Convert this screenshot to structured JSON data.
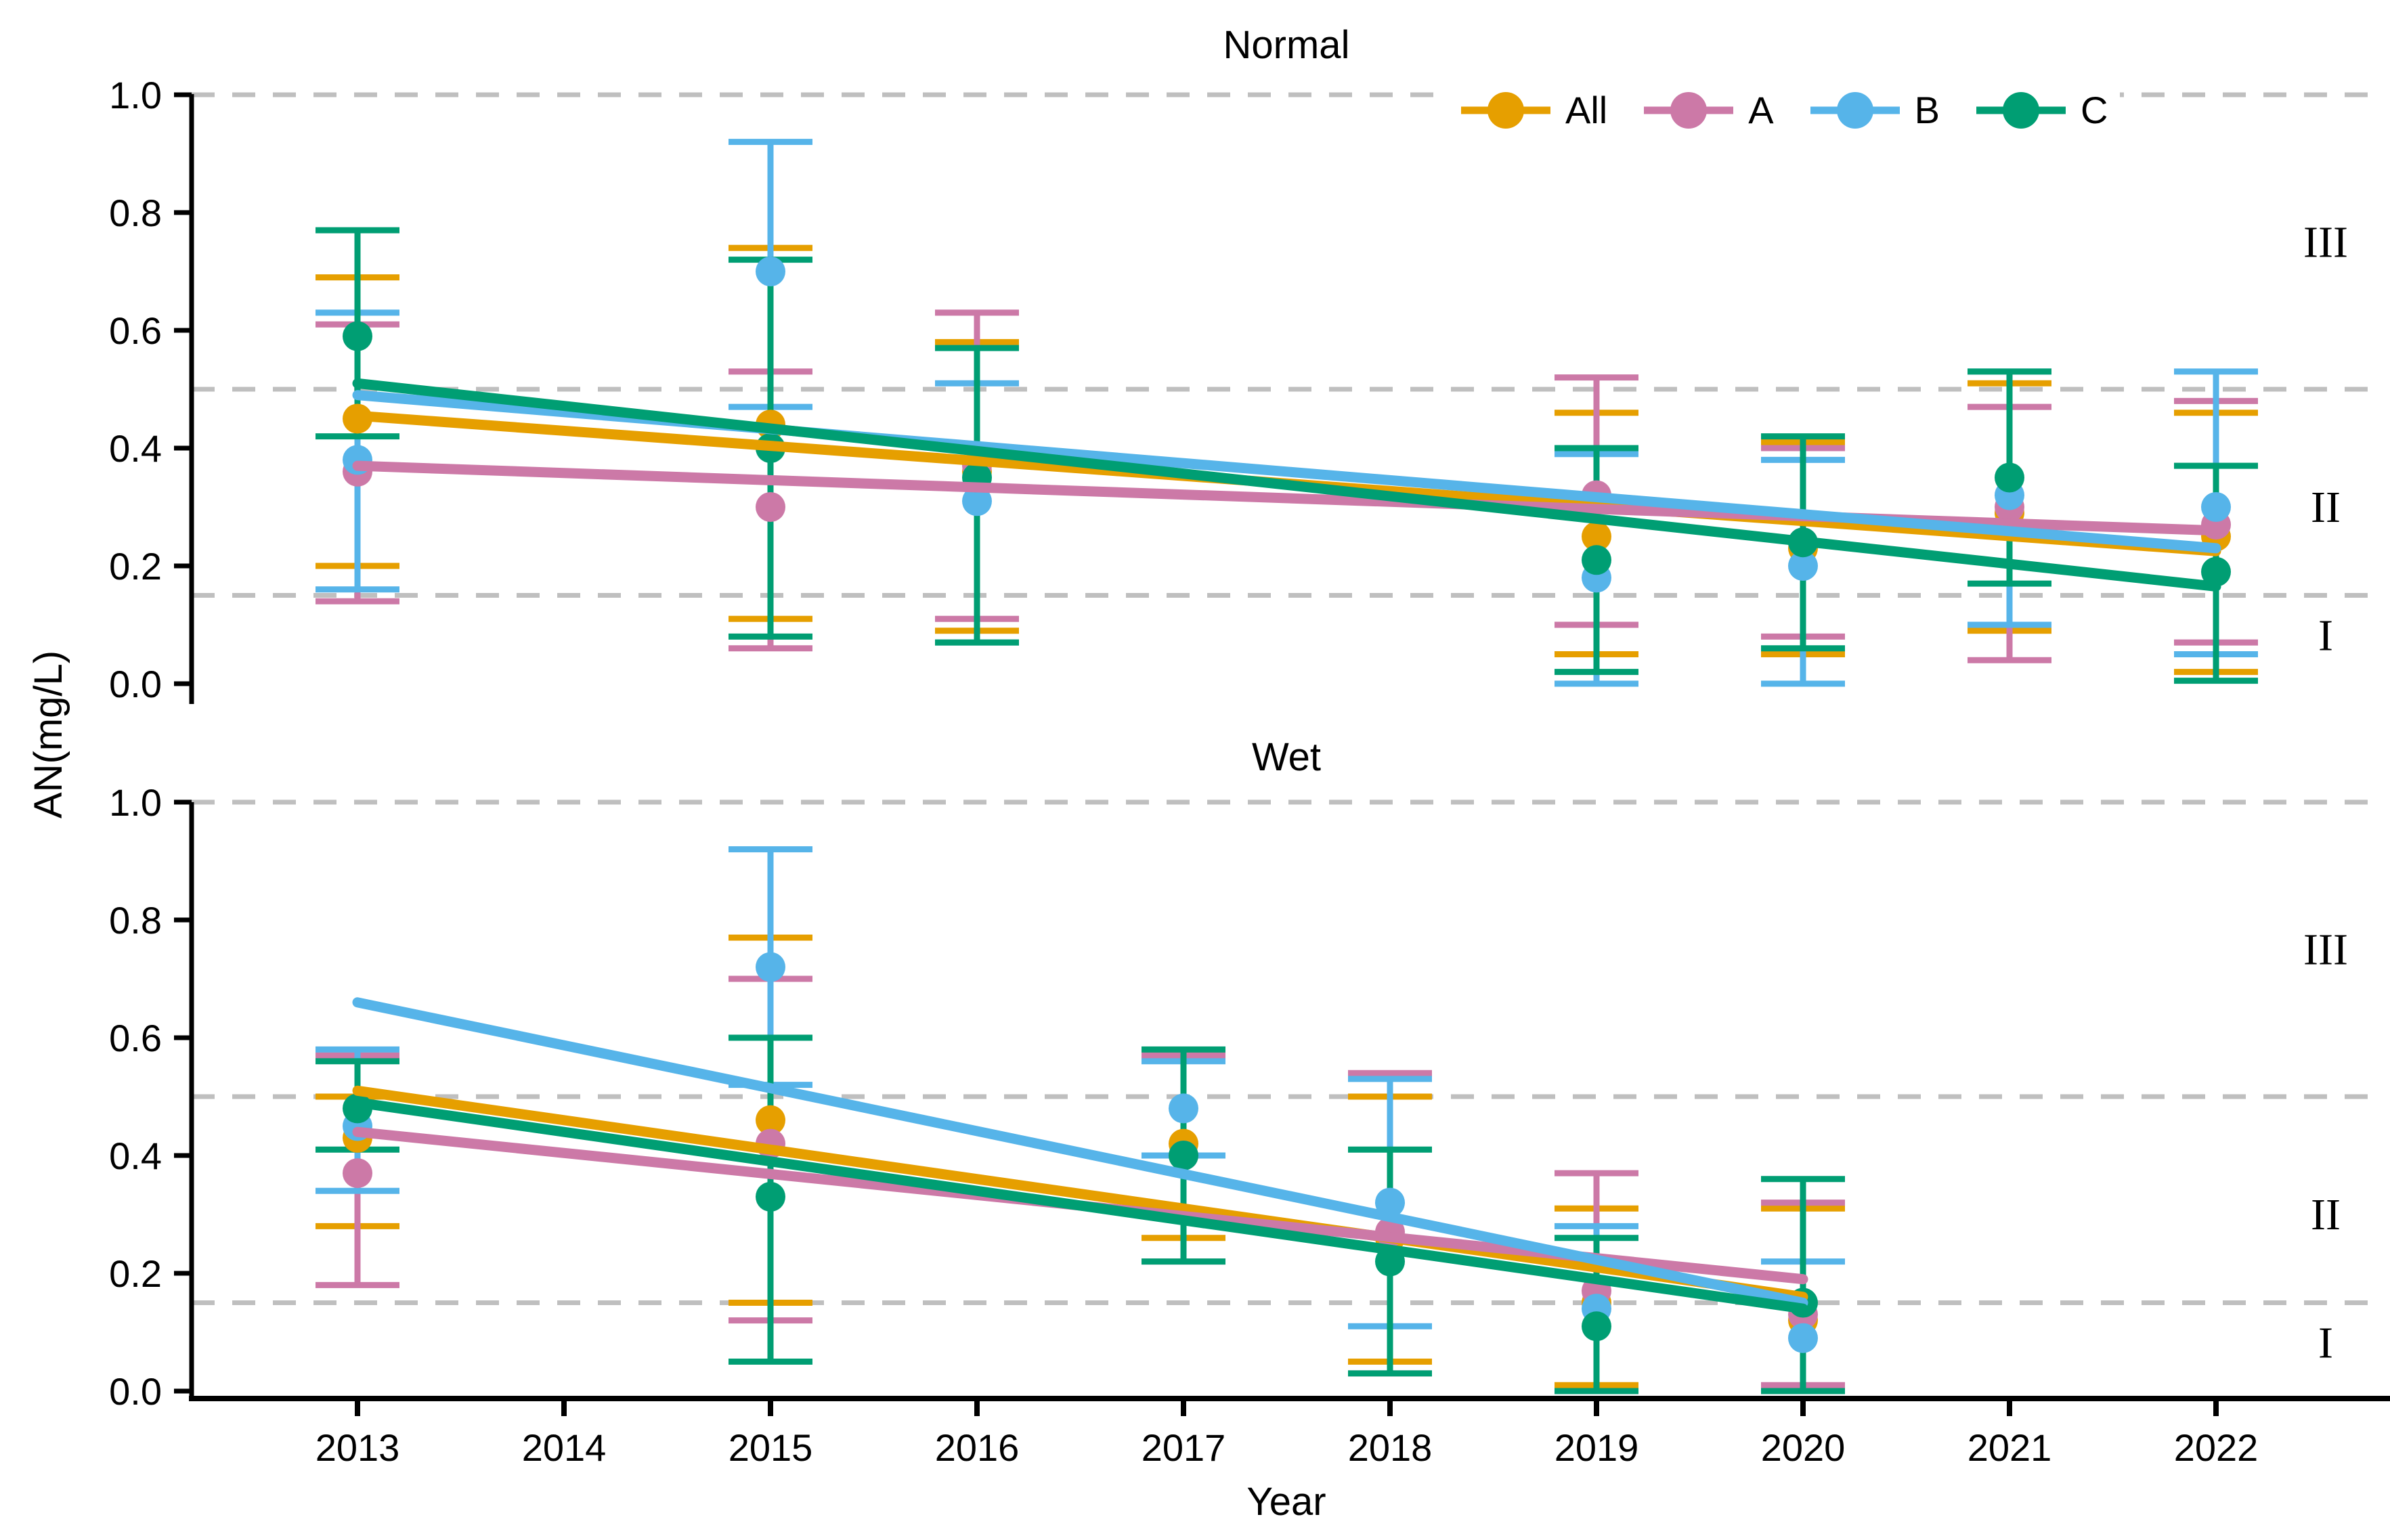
{
  "figure": {
    "background": "#ffffff",
    "ylabel": "AN(mg/L)",
    "xlabel": "Year"
  },
  "legend": {
    "items": [
      {
        "label": "All",
        "color": "#E69F00"
      },
      {
        "label": "A",
        "color": "#CC79A7"
      },
      {
        "label": "B",
        "color": "#56B4E9"
      },
      {
        "label": "C",
        "color": "#009E73"
      }
    ]
  },
  "colors": {
    "All": "#E69F00",
    "A": "#CC79A7",
    "B": "#56B4E9",
    "C": "#009E73",
    "gridline": "#BFBFBF",
    "axis": "#000000",
    "text": "#000000"
  },
  "x_axis": {
    "label": "Year",
    "ticks": [
      2013,
      2014,
      2015,
      2016,
      2017,
      2018,
      2019,
      2020,
      2021,
      2022
    ]
  },
  "chart_data": [
    {
      "type": "scatter",
      "title": "Normal",
      "ylabel": "AN(mg/L)",
      "ylim": [
        0.0,
        1.0
      ],
      "y_ticks": [
        0.0,
        0.2,
        0.4,
        0.6,
        0.8,
        1.0
      ],
      "grid_dashed_at": [
        1.0,
        0.5,
        0.15
      ],
      "region_labels": [
        {
          "label": "III",
          "y": 0.75
        },
        {
          "label": "II",
          "y": 0.3
        },
        {
          "label": "I",
          "y": 0.082
        }
      ],
      "series": [
        {
          "name": "All",
          "color": "#E69F00",
          "points": [
            {
              "x": 2013,
              "y": 0.45,
              "lo": 0.2,
              "hi": 0.69
            },
            {
              "x": 2015,
              "y": 0.44,
              "lo": 0.11,
              "hi": 0.74
            },
            {
              "x": 2016,
              "y": 0.36,
              "lo": 0.09,
              "hi": 0.58
            },
            {
              "x": 2019,
              "y": 0.25,
              "lo": 0.05,
              "hi": 0.46
            },
            {
              "x": 2020,
              "y": 0.23,
              "lo": 0.05,
              "hi": 0.41
            },
            {
              "x": 2021,
              "y": 0.29,
              "lo": 0.09,
              "hi": 0.51
            },
            {
              "x": 2022,
              "y": 0.25,
              "lo": 0.02,
              "hi": 0.46
            }
          ],
          "trend": {
            "x1": 2013,
            "y1": 0.455,
            "x2": 2022,
            "y2": 0.225
          }
        },
        {
          "name": "A",
          "color": "#CC79A7",
          "points": [
            {
              "x": 2013,
              "y": 0.36,
              "lo": 0.14,
              "hi": 0.61
            },
            {
              "x": 2015,
              "y": 0.3,
              "lo": 0.06,
              "hi": 0.53
            },
            {
              "x": 2016,
              "y": 0.37,
              "lo": 0.11,
              "hi": 0.63
            },
            {
              "x": 2019,
              "y": 0.32,
              "lo": 0.1,
              "hi": 0.52
            },
            {
              "x": 2020,
              "y": 0.24,
              "lo": 0.08,
              "hi": 0.4
            },
            {
              "x": 2021,
              "y": 0.3,
              "lo": 0.04,
              "hi": 0.47
            },
            {
              "x": 2022,
              "y": 0.27,
              "lo": 0.07,
              "hi": 0.48
            }
          ],
          "trend": {
            "x1": 2013,
            "y1": 0.37,
            "x2": 2022,
            "y2": 0.26
          }
        },
        {
          "name": "B",
          "color": "#56B4E9",
          "points": [
            {
              "x": 2013,
              "y": 0.38,
              "lo": 0.16,
              "hi": 0.63
            },
            {
              "x": 2015,
              "y": 0.7,
              "lo": 0.47,
              "hi": 0.92
            },
            {
              "x": 2016,
              "y": 0.31,
              "lo": 0.07,
              "hi": 0.51
            },
            {
              "x": 2019,
              "y": 0.18,
              "lo": 0.0,
              "hi": 0.39
            },
            {
              "x": 2020,
              "y": 0.2,
              "lo": 0.0,
              "hi": 0.38
            },
            {
              "x": 2021,
              "y": 0.32,
              "lo": 0.1,
              "hi": 0.53
            },
            {
              "x": 2022,
              "y": 0.3,
              "lo": 0.05,
              "hi": 0.53
            }
          ],
          "trend": {
            "x1": 2013,
            "y1": 0.49,
            "x2": 2022,
            "y2": 0.23
          }
        },
        {
          "name": "C",
          "color": "#009E73",
          "points": [
            {
              "x": 2013,
              "y": 0.59,
              "lo": 0.42,
              "hi": 0.77
            },
            {
              "x": 2015,
              "y": 0.4,
              "lo": 0.08,
              "hi": 0.72
            },
            {
              "x": 2016,
              "y": 0.35,
              "lo": 0.07,
              "hi": 0.57
            },
            {
              "x": 2019,
              "y": 0.21,
              "lo": 0.02,
              "hi": 0.4
            },
            {
              "x": 2020,
              "y": 0.24,
              "lo": 0.06,
              "hi": 0.42
            },
            {
              "x": 2021,
              "y": 0.35,
              "lo": 0.17,
              "hi": 0.53
            },
            {
              "x": 2022,
              "y": 0.19,
              "lo": 0.005,
              "hi": 0.37
            }
          ],
          "trend": {
            "x1": 2013,
            "y1": 0.51,
            "x2": 2022,
            "y2": 0.165
          }
        }
      ]
    },
    {
      "type": "scatter",
      "title": "Wet",
      "ylabel": "AN(mg/L)",
      "ylim": [
        0.0,
        1.0
      ],
      "y_ticks": [
        0.0,
        0.2,
        0.4,
        0.6,
        0.8,
        1.0
      ],
      "grid_dashed_at": [
        1.0,
        0.5,
        0.15
      ],
      "region_labels": [
        {
          "label": "III",
          "y": 0.75
        },
        {
          "label": "II",
          "y": 0.3
        },
        {
          "label": "I",
          "y": 0.082
        }
      ],
      "series": [
        {
          "name": "All",
          "color": "#E69F00",
          "points": [
            {
              "x": 2013,
              "y": 0.43,
              "lo": 0.28,
              "hi": 0.5
            },
            {
              "x": 2015,
              "y": 0.46,
              "lo": 0.15,
              "hi": 0.77
            },
            {
              "x": 2017,
              "y": 0.42,
              "lo": 0.26,
              "hi": 0.57
            },
            {
              "x": 2018,
              "y": 0.26,
              "lo": 0.05,
              "hi": 0.5
            },
            {
              "x": 2019,
              "y": 0.15,
              "lo": 0.01,
              "hi": 0.31
            },
            {
              "x": 2020,
              "y": 0.12,
              "lo": 0.0,
              "hi": 0.31
            }
          ],
          "trend": {
            "x1": 2013,
            "y1": 0.51,
            "x2": 2020,
            "y2": 0.16
          }
        },
        {
          "name": "A",
          "color": "#CC79A7",
          "points": [
            {
              "x": 2013,
              "y": 0.37,
              "lo": 0.18,
              "hi": 0.57
            },
            {
              "x": 2015,
              "y": 0.42,
              "lo": 0.12,
              "hi": 0.7
            },
            {
              "x": 2017,
              "y": 0.4,
              "lo": 0.22,
              "hi": 0.57
            },
            {
              "x": 2018,
              "y": 0.27,
              "lo": 0.03,
              "hi": 0.54
            },
            {
              "x": 2019,
              "y": 0.17,
              "lo": 0.0,
              "hi": 0.37
            },
            {
              "x": 2020,
              "y": 0.13,
              "lo": 0.01,
              "hi": 0.32
            }
          ],
          "trend": {
            "x1": 2013,
            "y1": 0.44,
            "x2": 2020,
            "y2": 0.19
          }
        },
        {
          "name": "B",
          "color": "#56B4E9",
          "points": [
            {
              "x": 2013,
              "y": 0.45,
              "lo": 0.34,
              "hi": 0.58
            },
            {
              "x": 2015,
              "y": 0.72,
              "lo": 0.52,
              "hi": 0.92
            },
            {
              "x": 2017,
              "y": 0.48,
              "lo": 0.4,
              "hi": 0.56
            },
            {
              "x": 2018,
              "y": 0.32,
              "lo": 0.11,
              "hi": 0.53
            },
            {
              "x": 2019,
              "y": 0.14,
              "lo": 0.0,
              "hi": 0.28
            },
            {
              "x": 2020,
              "y": 0.09,
              "lo": 0.0,
              "hi": 0.22
            }
          ],
          "trend": {
            "x1": 2013,
            "y1": 0.66,
            "x2": 2020,
            "y2": 0.15
          }
        },
        {
          "name": "C",
          "color": "#009E73",
          "points": [
            {
              "x": 2013,
              "y": 0.48,
              "lo": 0.41,
              "hi": 0.56
            },
            {
              "x": 2015,
              "y": 0.33,
              "lo": 0.05,
              "hi": 0.6
            },
            {
              "x": 2017,
              "y": 0.4,
              "lo": 0.22,
              "hi": 0.58
            },
            {
              "x": 2018,
              "y": 0.22,
              "lo": 0.03,
              "hi": 0.41
            },
            {
              "x": 2019,
              "y": 0.11,
              "lo": 0.0,
              "hi": 0.26
            },
            {
              "x": 2020,
              "y": 0.15,
              "lo": 0.0,
              "hi": 0.36
            }
          ],
          "trend": {
            "x1": 2013,
            "y1": 0.49,
            "x2": 2020,
            "y2": 0.14
          }
        }
      ]
    }
  ]
}
